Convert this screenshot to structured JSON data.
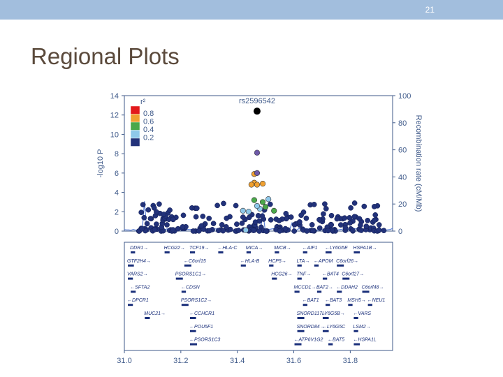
{
  "slide": {
    "number": "21",
    "title": "Regional Plots"
  },
  "colors": {
    "topbar": "#a2bedd",
    "axis": "#3f5a8a",
    "recomb_line": "#5b7fd6",
    "gene": "#1a2f7a"
  },
  "chart_data": {
    "type": "scatter",
    "title": "",
    "lead_snp": {
      "label": "rs2596542",
      "x": 31.47,
      "y": 12.4
    },
    "ylabel": "-log10 P",
    "ylabel_right": "Recombination rate (cM/Mb)",
    "ylim": [
      0,
      14
    ],
    "y_ticks": [
      "0",
      "2",
      "4",
      "6",
      "8",
      "10",
      "12",
      "14"
    ],
    "y2lim": [
      0,
      100
    ],
    "y2_ticks": [
      "0",
      "20",
      "40",
      "60",
      "80",
      "100"
    ],
    "xlim": [
      31.0,
      31.95
    ],
    "x_ticks": [
      "31.0",
      "31.2",
      "31.4",
      "31.6",
      "31.8"
    ],
    "legend": {
      "title": "r²",
      "position": "top-left",
      "levels": [
        {
          "label": "0.8",
          "color": "#e31a1c"
        },
        {
          "label": "0.6",
          "color": "#f0a030"
        },
        {
          "label": "0.4",
          "color": "#4aa84a"
        },
        {
          "label": "0.2",
          "color": "#8ec8ea"
        },
        {
          "label": "",
          "color": "#22327a"
        }
      ]
    },
    "highlight_points": [
      {
        "x": 31.47,
        "y": 8.1,
        "r2": "0.8+",
        "color": "#6e5aa8"
      },
      {
        "x": 31.46,
        "y": 5.9,
        "color": "#f0a030"
      },
      {
        "x": 31.47,
        "y": 6.0,
        "color": "#6e5aa8"
      },
      {
        "x": 31.46,
        "y": 5.0,
        "color": "#f0a030"
      },
      {
        "x": 31.45,
        "y": 4.8,
        "color": "#f0a030"
      },
      {
        "x": 31.47,
        "y": 4.8,
        "color": "#f0a030"
      },
      {
        "x": 31.49,
        "y": 4.9,
        "color": "#f0a030"
      },
      {
        "x": 31.46,
        "y": 3.2,
        "color": "#4aa84a"
      },
      {
        "x": 31.49,
        "y": 3.0,
        "color": "#4aa84a"
      },
      {
        "x": 31.5,
        "y": 2.5,
        "color": "#4aa84a"
      },
      {
        "x": 31.53,
        "y": 2.1,
        "color": "#4aa84a"
      },
      {
        "x": 31.44,
        "y": 2.0,
        "color": "#8ec8ea"
      },
      {
        "x": 31.48,
        "y": 2.3,
        "color": "#8ec8ea"
      },
      {
        "x": 31.47,
        "y": 2.6,
        "color": "#8ec8ea"
      },
      {
        "x": 31.42,
        "y": 2.1,
        "color": "#8ec8ea"
      },
      {
        "x": 31.51,
        "y": 3.3,
        "color": "#8ec8ea"
      },
      {
        "x": 31.43,
        "y": 0.1,
        "color": "#8ec8ea"
      }
    ],
    "genes": [
      {
        "name": "DDR1",
        "x": 31.02,
        "row": 0,
        "dir": "right"
      },
      {
        "name": "HCG22",
        "x": 31.14,
        "row": 0,
        "dir": "right"
      },
      {
        "name": "TCF19",
        "x": 31.23,
        "row": 0,
        "dir": "right"
      },
      {
        "name": "HLA-C",
        "x": 31.33,
        "row": 0,
        "dir": "left"
      },
      {
        "name": "MICA",
        "x": 31.43,
        "row": 0,
        "dir": "right"
      },
      {
        "name": "MICB",
        "x": 31.53,
        "row": 0,
        "dir": "right"
      },
      {
        "name": "AIF1",
        "x": 31.63,
        "row": 0,
        "dir": "left"
      },
      {
        "name": "LY6G5E",
        "x": 31.71,
        "row": 0,
        "dir": "left"
      },
      {
        "name": "HSPA1B",
        "x": 31.81,
        "row": 0,
        "dir": "right"
      },
      {
        "name": "GTF2H4",
        "x": 31.01,
        "row": 1,
        "dir": "right"
      },
      {
        "name": "C6orf15",
        "x": 31.21,
        "row": 1,
        "dir": "left"
      },
      {
        "name": "HLA-B",
        "x": 31.41,
        "row": 1,
        "dir": "left"
      },
      {
        "name": "HCP5",
        "x": 31.51,
        "row": 1,
        "dir": "right"
      },
      {
        "name": "LTA",
        "x": 31.61,
        "row": 1,
        "dir": "right"
      },
      {
        "name": "APOM",
        "x": 31.67,
        "row": 1,
        "dir": "left"
      },
      {
        "name": "C6orf26",
        "x": 31.75,
        "row": 1,
        "dir": "right"
      },
      {
        "name": "VARS2",
        "x": 31.01,
        "row": 2,
        "dir": "right"
      },
      {
        "name": "PSORS1C1",
        "x": 31.18,
        "row": 2,
        "dir": "right"
      },
      {
        "name": "HCG26",
        "x": 31.52,
        "row": 2,
        "dir": "right"
      },
      {
        "name": "TNF",
        "x": 31.61,
        "row": 2,
        "dir": "right"
      },
      {
        "name": "BAT4",
        "x": 31.7,
        "row": 2,
        "dir": "left"
      },
      {
        "name": "C6orf27",
        "x": 31.77,
        "row": 2,
        "dir": "right"
      },
      {
        "name": "SFTA2",
        "x": 31.02,
        "row": 3,
        "dir": "left"
      },
      {
        "name": "CDSN",
        "x": 31.2,
        "row": 3,
        "dir": "left"
      },
      {
        "name": "MCCD1",
        "x": 31.6,
        "row": 3,
        "dir": "right"
      },
      {
        "name": "BAT2",
        "x": 31.68,
        "row": 3,
        "dir": "right"
      },
      {
        "name": "DDAH2",
        "x": 31.75,
        "row": 3,
        "dir": "left"
      },
      {
        "name": "C6orf48",
        "x": 31.84,
        "row": 3,
        "dir": "right"
      },
      {
        "name": "DPCR1",
        "x": 31.01,
        "row": 4,
        "dir": "left"
      },
      {
        "name": "PSORS1C2",
        "x": 31.2,
        "row": 4,
        "dir": "right"
      },
      {
        "name": "BAT1",
        "x": 31.63,
        "row": 4,
        "dir": "left"
      },
      {
        "name": "BAT3",
        "x": 31.71,
        "row": 4,
        "dir": "left"
      },
      {
        "name": "MSH5",
        "x": 31.79,
        "row": 4,
        "dir": "right"
      },
      {
        "name": "NEU1",
        "x": 31.86,
        "row": 4,
        "dir": "left"
      },
      {
        "name": "MUC21",
        "x": 31.07,
        "row": 5,
        "dir": "right"
      },
      {
        "name": "CCHCR1",
        "x": 31.23,
        "row": 5,
        "dir": "left"
      },
      {
        "name": "SNORD117",
        "x": 31.61,
        "row": 5,
        "dir": "right"
      },
      {
        "name": "LY6G5B",
        "x": 31.7,
        "row": 5,
        "dir": "right"
      },
      {
        "name": "VARS",
        "x": 31.81,
        "row": 5,
        "dir": "left"
      },
      {
        "name": "POU5F1",
        "x": 31.23,
        "row": 6,
        "dir": "left"
      },
      {
        "name": "SNORD84",
        "x": 31.61,
        "row": 6,
        "dir": "right"
      },
      {
        "name": "LY6G5C",
        "x": 31.7,
        "row": 6,
        "dir": "left"
      },
      {
        "name": "LSM2",
        "x": 31.81,
        "row": 6,
        "dir": "right"
      },
      {
        "name": "PSORS1C3",
        "x": 31.23,
        "row": 7,
        "dir": "left"
      },
      {
        "name": "ATP6V1G2",
        "x": 31.6,
        "row": 7,
        "dir": "left"
      },
      {
        "name": "BAT5",
        "x": 31.72,
        "row": 7,
        "dir": "left"
      },
      {
        "name": "HSPA1L",
        "x": 31.81,
        "row": 7,
        "dir": "left"
      }
    ]
  }
}
